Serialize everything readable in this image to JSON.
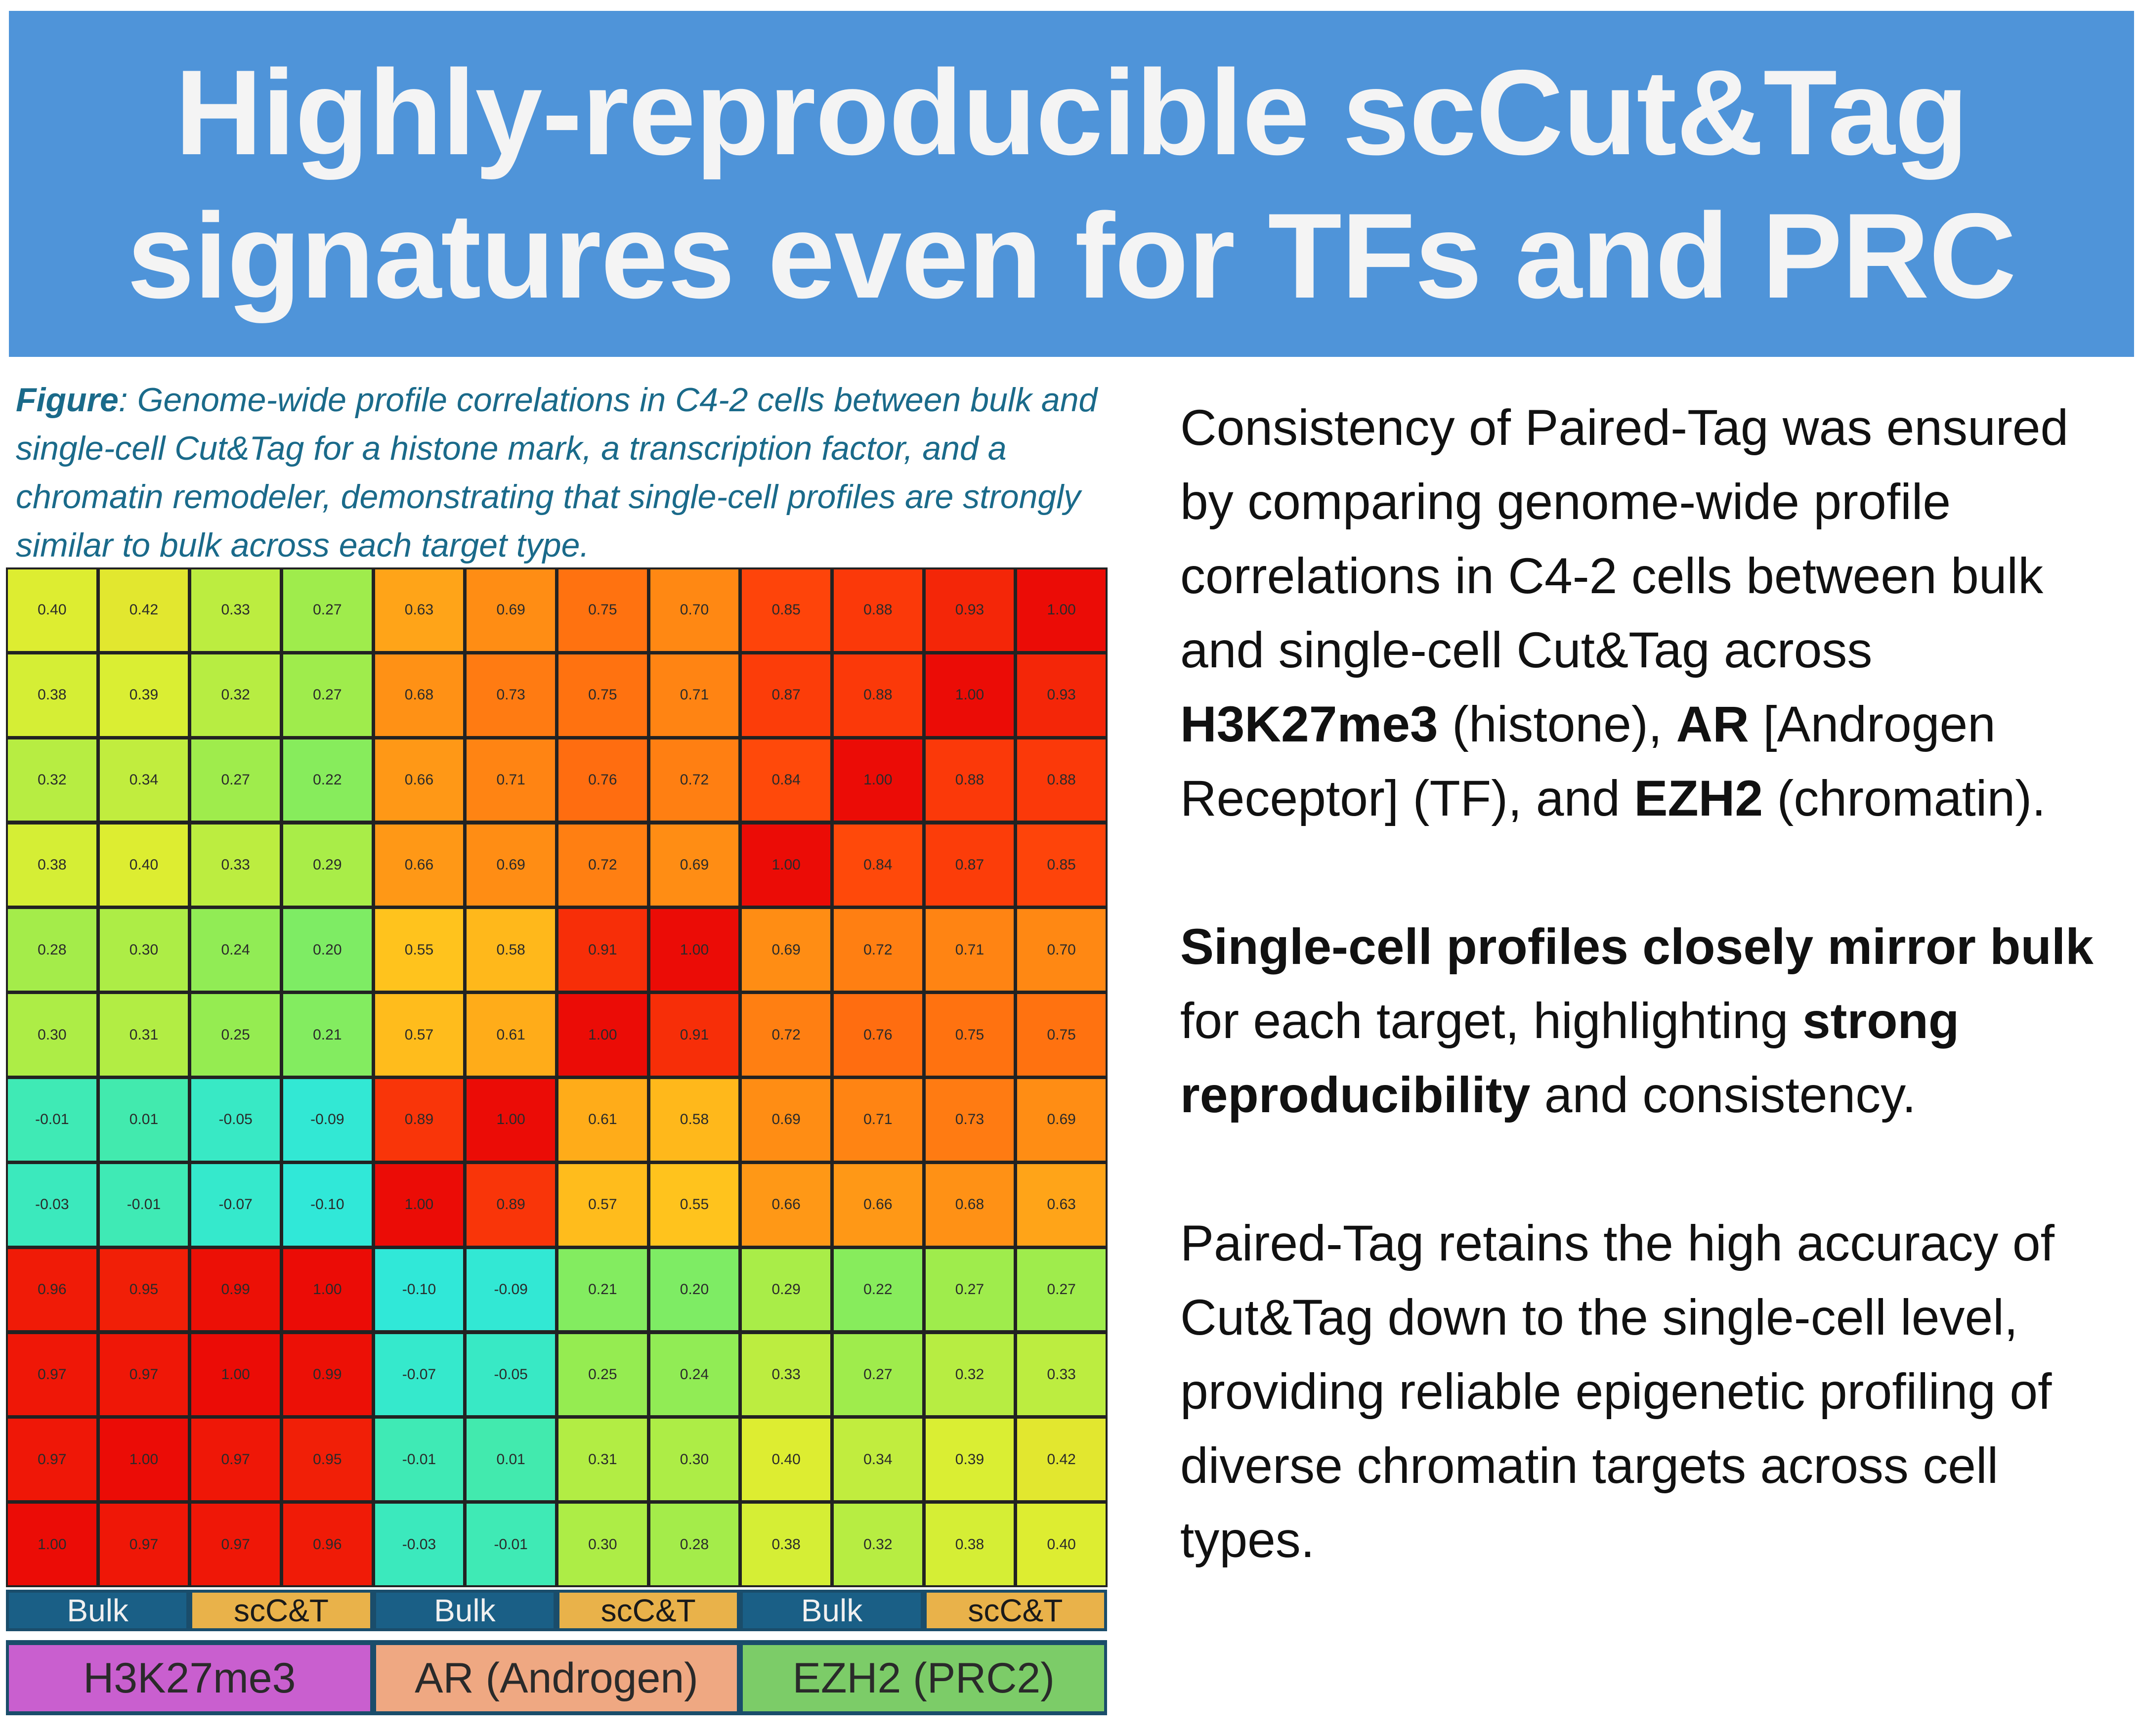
{
  "title": {
    "line1": "Highly-reproducible scCut&Tag",
    "line2": "signatures even for TFs and PRC"
  },
  "caption": {
    "label": "Figure",
    "text": ": Genome-wide profile correlations in C4-2 cells between bulk and single-cell Cut&Tag for a histone mark, a transcription factor, and a chromatin remodeler, demonstrating that single-cell profiles are strongly similar to bulk across each target type."
  },
  "body": {
    "p1_pre": "Consistency of Paired-Tag was ensured by comparing genome-wide profile correlations in C4-2 cells between bulk and single-cell Cut&Tag across ",
    "p1_b1": "H3K27me3",
    "p1_m1": " (histone), ",
    "p1_b2": "AR",
    "p1_m2": " [Androgen Receptor] (TF), and ",
    "p1_b3": "EZH2",
    "p1_post": " (chromatin).",
    "p2_b1": "Single-cell profiles closely mirror bulk",
    "p2_m1": " for each target, highlighting ",
    "p2_b2": "strong reproducibility",
    "p2_post": " and consistency.",
    "p3": "Paired-Tag retains the high accuracy of Cut&Tag down to the single-cell level, providing reliable epigenetic profiling of diverse chromatin targets across cell types."
  },
  "colors": {
    "banner": "#4f94d9",
    "caption": "#1a6a8a",
    "bulk": "#1a5f86",
    "scct": "#e9b24a",
    "h3k27me3": "#c95fcf",
    "ar": "#efa882",
    "ezh2": "#7ccc68"
  },
  "chart_data": {
    "type": "heatmap",
    "colormap": "jet",
    "color_range": [
      -0.1,
      1.0
    ],
    "column_subgroups": [
      "Bulk",
      "scC&T",
      "Bulk",
      "scC&T",
      "Bulk",
      "scC&T"
    ],
    "column_groups": [
      "H3K27me3",
      "AR (Androgen)",
      "EZH2 (PRC2)"
    ],
    "matrix": [
      [
        "0.40",
        "0.42",
        "0.33",
        "0.27",
        "0.63",
        "0.69",
        "0.75",
        "0.70",
        "0.85",
        "0.88",
        "0.93",
        "1.00"
      ],
      [
        "0.38",
        "0.39",
        "0.32",
        "0.27",
        "0.68",
        "0.73",
        "0.75",
        "0.71",
        "0.87",
        "0.88",
        "1.00",
        "0.93"
      ],
      [
        "0.32",
        "0.34",
        "0.27",
        "0.22",
        "0.66",
        "0.71",
        "0.76",
        "0.72",
        "0.84",
        "1.00",
        "0.88",
        "0.88"
      ],
      [
        "0.38",
        "0.40",
        "0.33",
        "0.29",
        "0.66",
        "0.69",
        "0.72",
        "0.69",
        "1.00",
        "0.84",
        "0.87",
        "0.85"
      ],
      [
        "0.28",
        "0.30",
        "0.24",
        "0.20",
        "0.55",
        "0.58",
        "0.91",
        "1.00",
        "0.69",
        "0.72",
        "0.71",
        "0.70"
      ],
      [
        "0.30",
        "0.31",
        "0.25",
        "0.21",
        "0.57",
        "0.61",
        "1.00",
        "0.91",
        "0.72",
        "0.76",
        "0.75",
        "0.75"
      ],
      [
        "-0.01",
        "0.01",
        "-0.05",
        "-0.09",
        "0.89",
        "1.00",
        "0.61",
        "0.58",
        "0.69",
        "0.71",
        "0.73",
        "0.69"
      ],
      [
        "-0.03",
        "-0.01",
        "-0.07",
        "-0.10",
        "1.00",
        "0.89",
        "0.57",
        "0.55",
        "0.66",
        "0.66",
        "0.68",
        "0.63"
      ],
      [
        "0.96",
        "0.95",
        "0.99",
        "1.00",
        "-0.10",
        "-0.09",
        "0.21",
        "0.20",
        "0.29",
        "0.22",
        "0.27",
        "0.27"
      ],
      [
        "0.97",
        "0.97",
        "1.00",
        "0.99",
        "-0.07",
        "-0.05",
        "0.25",
        "0.24",
        "0.33",
        "0.27",
        "0.32",
        "0.33"
      ],
      [
        "0.97",
        "1.00",
        "0.97",
        "0.95",
        "-0.01",
        "0.01",
        "0.31",
        "0.30",
        "0.40",
        "0.34",
        "0.39",
        "0.42"
      ],
      [
        "1.00",
        "0.97",
        "0.97",
        "0.96",
        "-0.03",
        "-0.01",
        "0.30",
        "0.28",
        "0.38",
        "0.32",
        "0.38",
        "0.40"
      ]
    ]
  }
}
